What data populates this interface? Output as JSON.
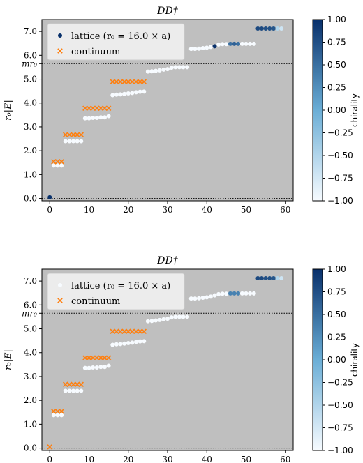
{
  "colors": {
    "plot_bg": "#bfbfbf",
    "continuum": "#ff7f0e",
    "threshold_line": "#000000",
    "cmap_low": "#f7fbff",
    "cmap_mid": "#6baed6",
    "cmap_high": "#08306b"
  },
  "icons": {
    "lattice_marker": "filled-circle",
    "continuum_marker": "x-cross"
  },
  "chart_data": [
    {
      "type": "scatter",
      "title": "DD†",
      "xlabel": "",
      "ylabel": "r₀|E|",
      "xlim": [
        -2,
        62
      ],
      "ylim": [
        -0.1,
        7.5
      ],
      "xticks": [
        "0",
        "10",
        "20",
        "30",
        "40",
        "50",
        "60"
      ],
      "yticks": [
        "0.0",
        "1.0",
        "2.0",
        "3.0",
        "4.0",
        "5.0",
        "6.0",
        "7.0"
      ],
      "threshold": {
        "label": "mr₀",
        "y": 5.65
      },
      "zero_line": 0.0,
      "legend": {
        "placement": "top-left",
        "entries": [
          "lattice (r₀ = 16.0 × a)",
          "continuum"
        ]
      },
      "colorbar": {
        "label": "chirality",
        "range": [
          -1.0,
          1.0
        ],
        "ticks": [
          "1.00",
          "0.75",
          "0.50",
          "0.25",
          "0.00",
          "−0.25",
          "−0.50",
          "−0.75",
          "−1.00"
        ]
      },
      "lattice_series": {
        "name": "lattice (r₀ = 16.0 × a)",
        "points": [
          {
            "x": 0,
            "y": 0.05,
            "chirality": 1.0
          },
          {
            "x": 1,
            "y": 1.38,
            "chirality": -1.0
          },
          {
            "x": 2,
            "y": 1.38,
            "chirality": -1.0
          },
          {
            "x": 3,
            "y": 1.38,
            "chirality": -1.0
          },
          {
            "x": 4,
            "y": 2.4,
            "chirality": -1.0
          },
          {
            "x": 5,
            "y": 2.4,
            "chirality": -1.0
          },
          {
            "x": 6,
            "y": 2.4,
            "chirality": -1.0
          },
          {
            "x": 7,
            "y": 2.4,
            "chirality": -1.0
          },
          {
            "x": 8,
            "y": 2.4,
            "chirality": -1.0
          },
          {
            "x": 9,
            "y": 3.36,
            "chirality": -1.0
          },
          {
            "x": 10,
            "y": 3.36,
            "chirality": -1.0
          },
          {
            "x": 11,
            "y": 3.38,
            "chirality": -1.0
          },
          {
            "x": 12,
            "y": 3.38,
            "chirality": -1.0
          },
          {
            "x": 13,
            "y": 3.4,
            "chirality": -1.0
          },
          {
            "x": 14,
            "y": 3.4,
            "chirality": -1.0
          },
          {
            "x": 15,
            "y": 3.45,
            "chirality": -1.0
          },
          {
            "x": 16,
            "y": 4.33,
            "chirality": -1.0
          },
          {
            "x": 17,
            "y": 4.35,
            "chirality": -1.0
          },
          {
            "x": 18,
            "y": 4.36,
            "chirality": -1.0
          },
          {
            "x": 19,
            "y": 4.38,
            "chirality": -1.0
          },
          {
            "x": 20,
            "y": 4.4,
            "chirality": -1.0
          },
          {
            "x": 21,
            "y": 4.42,
            "chirality": -1.0
          },
          {
            "x": 22,
            "y": 4.45,
            "chirality": -1.0
          },
          {
            "x": 23,
            "y": 4.47,
            "chirality": -1.0
          },
          {
            "x": 24,
            "y": 4.48,
            "chirality": -1.0
          },
          {
            "x": 25,
            "y": 5.32,
            "chirality": -1.0
          },
          {
            "x": 26,
            "y": 5.33,
            "chirality": -1.0
          },
          {
            "x": 27,
            "y": 5.35,
            "chirality": -1.0
          },
          {
            "x": 28,
            "y": 5.37,
            "chirality": -1.0
          },
          {
            "x": 29,
            "y": 5.4,
            "chirality": -1.0
          },
          {
            "x": 30,
            "y": 5.42,
            "chirality": -1.0
          },
          {
            "x": 31,
            "y": 5.48,
            "chirality": -1.0
          },
          {
            "x": 32,
            "y": 5.5,
            "chirality": -1.0
          },
          {
            "x": 33,
            "y": 5.5,
            "chirality": -1.0
          },
          {
            "x": 34,
            "y": 5.5,
            "chirality": -1.0
          },
          {
            "x": 35,
            "y": 5.5,
            "chirality": -1.0
          },
          {
            "x": 36,
            "y": 6.27,
            "chirality": -1.0
          },
          {
            "x": 37,
            "y": 6.27,
            "chirality": -1.0
          },
          {
            "x": 38,
            "y": 6.28,
            "chirality": -1.0
          },
          {
            "x": 39,
            "y": 6.3,
            "chirality": -1.0
          },
          {
            "x": 40,
            "y": 6.32,
            "chirality": -1.0
          },
          {
            "x": 41,
            "y": 6.35,
            "chirality": -1.0
          },
          {
            "x": 42,
            "y": 6.38,
            "chirality": 1.0
          },
          {
            "x": 43,
            "y": 6.45,
            "chirality": -1.0
          },
          {
            "x": 44,
            "y": 6.47,
            "chirality": -1.0
          },
          {
            "x": 45,
            "y": 6.47,
            "chirality": -1.0
          },
          {
            "x": 46,
            "y": 6.48,
            "chirality": 0.5
          },
          {
            "x": 47,
            "y": 6.48,
            "chirality": 0.6
          },
          {
            "x": 48,
            "y": 6.48,
            "chirality": 0.5
          },
          {
            "x": 49,
            "y": 6.48,
            "chirality": -1.0
          },
          {
            "x": 50,
            "y": 6.48,
            "chirality": -1.0
          },
          {
            "x": 51,
            "y": 6.48,
            "chirality": -1.0
          },
          {
            "x": 52,
            "y": 6.48,
            "chirality": -1.0
          },
          {
            "x": 53,
            "y": 7.12,
            "chirality": 0.8
          },
          {
            "x": 54,
            "y": 7.12,
            "chirality": 0.8
          },
          {
            "x": 55,
            "y": 7.12,
            "chirality": 0.75
          },
          {
            "x": 56,
            "y": 7.12,
            "chirality": 0.75
          },
          {
            "x": 57,
            "y": 7.12,
            "chirality": 0.7
          },
          {
            "x": 58,
            "y": 7.12,
            "chirality": -0.5
          },
          {
            "x": 59,
            "y": 7.12,
            "chirality": -0.7
          }
        ]
      },
      "continuum_series": {
        "name": "continuum",
        "points": [
          {
            "x": 1,
            "y": 1.54
          },
          {
            "x": 2,
            "y": 1.54
          },
          {
            "x": 3,
            "y": 1.54
          },
          {
            "x": 4,
            "y": 2.67
          },
          {
            "x": 5,
            "y": 2.67
          },
          {
            "x": 6,
            "y": 2.67
          },
          {
            "x": 7,
            "y": 2.67
          },
          {
            "x": 8,
            "y": 2.67
          },
          {
            "x": 9,
            "y": 3.78
          },
          {
            "x": 10,
            "y": 3.78
          },
          {
            "x": 11,
            "y": 3.78
          },
          {
            "x": 12,
            "y": 3.78
          },
          {
            "x": 13,
            "y": 3.78
          },
          {
            "x": 14,
            "y": 3.78
          },
          {
            "x": 15,
            "y": 3.78
          },
          {
            "x": 16,
            "y": 4.89
          },
          {
            "x": 17,
            "y": 4.89
          },
          {
            "x": 18,
            "y": 4.89
          },
          {
            "x": 19,
            "y": 4.89
          },
          {
            "x": 20,
            "y": 4.89
          },
          {
            "x": 21,
            "y": 4.89
          },
          {
            "x": 22,
            "y": 4.89
          },
          {
            "x": 23,
            "y": 4.89
          },
          {
            "x": 24,
            "y": 4.89
          }
        ]
      }
    },
    {
      "type": "scatter",
      "title": "DD†",
      "xlabel": "",
      "ylabel": "r₀|E|",
      "xlim": [
        -2,
        62
      ],
      "ylim": [
        -0.1,
        7.5
      ],
      "xticks": [
        "0",
        "10",
        "20",
        "30",
        "40",
        "50",
        "60"
      ],
      "yticks": [
        "0.0",
        "1.0",
        "2.0",
        "3.0",
        "4.0",
        "5.0",
        "6.0",
        "7.0"
      ],
      "threshold": {
        "label": "mr₀",
        "y": 5.65
      },
      "zero_line": 0.0,
      "legend": {
        "placement": "top-left",
        "entries": [
          "lattice (r₀ = 16.0 × a)",
          "continuum"
        ]
      },
      "colorbar": {
        "label": "chirality",
        "range": [
          -1.0,
          1.0
        ],
        "ticks": [
          "1.00",
          "0.75",
          "0.50",
          "0.25",
          "0.00",
          "−0.25",
          "−0.50",
          "−0.75",
          "−1.00"
        ]
      },
      "lattice_series": {
        "name": "lattice (r₀ = 16.0 × a)",
        "points": [
          {
            "x": 1,
            "y": 1.38,
            "chirality": -1.0
          },
          {
            "x": 2,
            "y": 1.38,
            "chirality": -1.0
          },
          {
            "x": 3,
            "y": 1.38,
            "chirality": -1.0
          },
          {
            "x": 4,
            "y": 2.4,
            "chirality": -1.0
          },
          {
            "x": 5,
            "y": 2.4,
            "chirality": -1.0
          },
          {
            "x": 6,
            "y": 2.4,
            "chirality": -1.0
          },
          {
            "x": 7,
            "y": 2.4,
            "chirality": -1.0
          },
          {
            "x": 8,
            "y": 2.4,
            "chirality": -1.0
          },
          {
            "x": 9,
            "y": 3.36,
            "chirality": -1.0
          },
          {
            "x": 10,
            "y": 3.36,
            "chirality": -1.0
          },
          {
            "x": 11,
            "y": 3.38,
            "chirality": -1.0
          },
          {
            "x": 12,
            "y": 3.38,
            "chirality": -1.0
          },
          {
            "x": 13,
            "y": 3.4,
            "chirality": -1.0
          },
          {
            "x": 14,
            "y": 3.4,
            "chirality": -1.0
          },
          {
            "x": 15,
            "y": 3.45,
            "chirality": -1.0
          },
          {
            "x": 16,
            "y": 4.33,
            "chirality": -1.0
          },
          {
            "x": 17,
            "y": 4.35,
            "chirality": -1.0
          },
          {
            "x": 18,
            "y": 4.36,
            "chirality": -1.0
          },
          {
            "x": 19,
            "y": 4.38,
            "chirality": -1.0
          },
          {
            "x": 20,
            "y": 4.4,
            "chirality": -1.0
          },
          {
            "x": 21,
            "y": 4.42,
            "chirality": -1.0
          },
          {
            "x": 22,
            "y": 4.45,
            "chirality": -1.0
          },
          {
            "x": 23,
            "y": 4.47,
            "chirality": -1.0
          },
          {
            "x": 24,
            "y": 4.48,
            "chirality": -1.0
          },
          {
            "x": 25,
            "y": 5.32,
            "chirality": -1.0
          },
          {
            "x": 26,
            "y": 5.33,
            "chirality": -1.0
          },
          {
            "x": 27,
            "y": 5.35,
            "chirality": -1.0
          },
          {
            "x": 28,
            "y": 5.37,
            "chirality": -1.0
          },
          {
            "x": 29,
            "y": 5.4,
            "chirality": -1.0
          },
          {
            "x": 30,
            "y": 5.42,
            "chirality": -1.0
          },
          {
            "x": 31,
            "y": 5.48,
            "chirality": -1.0
          },
          {
            "x": 32,
            "y": 5.5,
            "chirality": -1.0
          },
          {
            "x": 33,
            "y": 5.5,
            "chirality": -1.0
          },
          {
            "x": 34,
            "y": 5.5,
            "chirality": -1.0
          },
          {
            "x": 35,
            "y": 5.5,
            "chirality": -1.0
          },
          {
            "x": 36,
            "y": 6.27,
            "chirality": -1.0
          },
          {
            "x": 37,
            "y": 6.27,
            "chirality": -1.0
          },
          {
            "x": 38,
            "y": 6.28,
            "chirality": -1.0
          },
          {
            "x": 39,
            "y": 6.3,
            "chirality": -1.0
          },
          {
            "x": 40,
            "y": 6.32,
            "chirality": -1.0
          },
          {
            "x": 41,
            "y": 6.35,
            "chirality": -1.0
          },
          {
            "x": 42,
            "y": 6.4,
            "chirality": -1.0
          },
          {
            "x": 43,
            "y": 6.45,
            "chirality": -1.0
          },
          {
            "x": 44,
            "y": 6.47,
            "chirality": -1.0
          },
          {
            "x": 45,
            "y": 6.47,
            "chirality": -1.0
          },
          {
            "x": 46,
            "y": 6.48,
            "chirality": 0.35
          },
          {
            "x": 47,
            "y": 6.48,
            "chirality": 0.35
          },
          {
            "x": 48,
            "y": 6.48,
            "chirality": 0.35
          },
          {
            "x": 49,
            "y": 6.48,
            "chirality": -1.0
          },
          {
            "x": 50,
            "y": 6.48,
            "chirality": -1.0
          },
          {
            "x": 51,
            "y": 6.48,
            "chirality": -1.0
          },
          {
            "x": 52,
            "y": 6.48,
            "chirality": -1.0
          },
          {
            "x": 53,
            "y": 7.12,
            "chirality": 0.8
          },
          {
            "x": 54,
            "y": 7.12,
            "chirality": 0.8
          },
          {
            "x": 55,
            "y": 7.12,
            "chirality": 0.75
          },
          {
            "x": 56,
            "y": 7.12,
            "chirality": 0.75
          },
          {
            "x": 57,
            "y": 7.12,
            "chirality": 0.7
          },
          {
            "x": 58,
            "y": 7.12,
            "chirality": -0.5
          },
          {
            "x": 59,
            "y": 7.12,
            "chirality": -0.7
          }
        ]
      },
      "continuum_series": {
        "name": "continuum",
        "points": [
          {
            "x": 0,
            "y": 0.05
          },
          {
            "x": 1,
            "y": 1.54
          },
          {
            "x": 2,
            "y": 1.54
          },
          {
            "x": 3,
            "y": 1.54
          },
          {
            "x": 4,
            "y": 2.67
          },
          {
            "x": 5,
            "y": 2.67
          },
          {
            "x": 6,
            "y": 2.67
          },
          {
            "x": 7,
            "y": 2.67
          },
          {
            "x": 8,
            "y": 2.67
          },
          {
            "x": 9,
            "y": 3.78
          },
          {
            "x": 10,
            "y": 3.78
          },
          {
            "x": 11,
            "y": 3.78
          },
          {
            "x": 12,
            "y": 3.78
          },
          {
            "x": 13,
            "y": 3.78
          },
          {
            "x": 14,
            "y": 3.78
          },
          {
            "x": 15,
            "y": 3.78
          },
          {
            "x": 16,
            "y": 4.89
          },
          {
            "x": 17,
            "y": 4.89
          },
          {
            "x": 18,
            "y": 4.89
          },
          {
            "x": 19,
            "y": 4.89
          },
          {
            "x": 20,
            "y": 4.89
          },
          {
            "x": 21,
            "y": 4.89
          },
          {
            "x": 22,
            "y": 4.89
          },
          {
            "x": 23,
            "y": 4.89
          },
          {
            "x": 24,
            "y": 4.89
          }
        ]
      }
    }
  ]
}
